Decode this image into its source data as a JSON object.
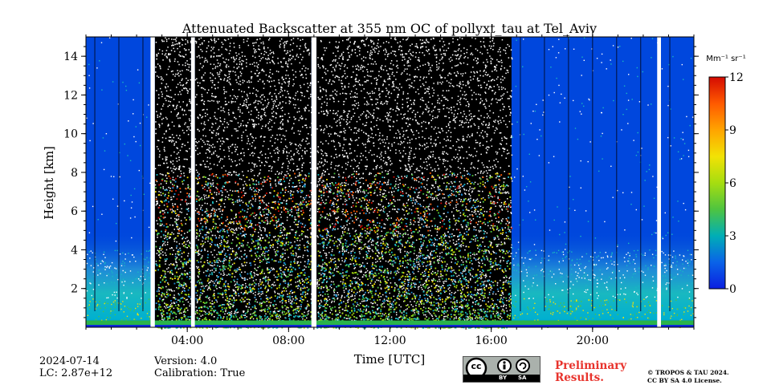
{
  "chart_data": {
    "type": "heatmap",
    "title": "Attenuated Backscatter at 355 nm OC of pollyxt_tau at Tel_Aviv",
    "xlabel": "Time [UTC]",
    "ylabel": "Height [km]",
    "xlim": [
      0,
      24
    ],
    "ylim": [
      0,
      15
    ],
    "x_ticks": [
      {
        "value": 4,
        "label": "04:00"
      },
      {
        "value": 8,
        "label": "08:00"
      },
      {
        "value": 12,
        "label": "12:00"
      },
      {
        "value": 16,
        "label": "16:00"
      },
      {
        "value": 20,
        "label": "20:00"
      }
    ],
    "y_ticks": [
      {
        "value": 2,
        "label": "2"
      },
      {
        "value": 4,
        "label": "4"
      },
      {
        "value": 6,
        "label": "6"
      },
      {
        "value": 8,
        "label": "8"
      },
      {
        "value": 10,
        "label": "10"
      },
      {
        "value": 12,
        "label": "12"
      },
      {
        "value": 14,
        "label": "14"
      }
    ],
    "colorbar": {
      "unit_label": "Mm⁻¹ sr⁻¹",
      "range": [
        0,
        12
      ],
      "ticks": [
        0,
        3,
        6,
        9,
        12
      ],
      "colors": [
        "#0b1fe0",
        "#0a63e8",
        "#00aeb6",
        "#4ec440",
        "#a6dd10",
        "#f2e205",
        "#ffa400",
        "#ff5a00",
        "#d40b02"
      ]
    },
    "colors": {
      "background_clear": "#0047dd",
      "daytime_noise": "#000000",
      "gap": "#ffffff"
    },
    "periods": [
      {
        "kind": "clear",
        "start": 0,
        "end": 2.55
      },
      {
        "kind": "gap",
        "start": 2.55,
        "end": 2.72
      },
      {
        "kind": "noisy",
        "start": 2.72,
        "end": 4.15
      },
      {
        "kind": "gap",
        "start": 4.15,
        "end": 4.3
      },
      {
        "kind": "noisy",
        "start": 4.3,
        "end": 8.9
      },
      {
        "kind": "gap",
        "start": 8.9,
        "end": 9.1
      },
      {
        "kind": "noisy",
        "start": 9.1,
        "end": 16.8
      },
      {
        "kind": "clear",
        "start": 16.8,
        "end": 22.55
      },
      {
        "kind": "gap",
        "start": 22.55,
        "end": 22.7
      },
      {
        "kind": "clear",
        "start": 22.7,
        "end": 24
      }
    ]
  },
  "footer": {
    "date": "2024-07-14",
    "lc": "LC: 2.87e+12",
    "version": "Version: 4.0",
    "calibration": "Calibration: True",
    "preliminary_line1": "Preliminary",
    "preliminary_line2": "Results.",
    "copyright": "© TROPOS & TAU 2024.",
    "license": "CC BY SA 4.0 License.",
    "cc_by": "BY",
    "cc_sa": "SA"
  }
}
